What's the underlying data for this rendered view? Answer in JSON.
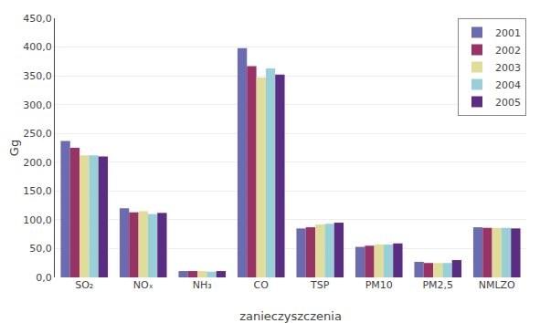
{
  "chart_data": {
    "type": "bar",
    "categories": [
      "SO₂",
      "NOₓ",
      "NH₃",
      "CO",
      "TSP",
      "PM10",
      "PM2,5",
      "NMLZO"
    ],
    "series": [
      {
        "name": "2001",
        "color": "#6b6baf",
        "values": [
          237,
          120,
          11,
          398,
          85,
          53,
          27,
          87
        ]
      },
      {
        "name": "2002",
        "color": "#993366",
        "values": [
          225,
          113,
          11,
          367,
          87,
          55,
          25,
          86
        ]
      },
      {
        "name": "2003",
        "color": "#e0dc9a",
        "values": [
          212,
          115,
          11,
          347,
          92,
          57,
          25,
          86
        ]
      },
      {
        "name": "2004",
        "color": "#99d0d8",
        "values": [
          212,
          110,
          10,
          363,
          93,
          57,
          25,
          86
        ]
      },
      {
        "name": "2005",
        "color": "#5b2d82",
        "values": [
          210,
          112,
          11,
          352,
          95,
          59,
          30,
          85
        ]
      }
    ],
    "xlabel": "zanieczyszczenia",
    "ylabel": "Gg",
    "ylim": [
      0,
      450
    ],
    "yticks": [
      {
        "value": 0,
        "label": "0,0"
      },
      {
        "value": 50,
        "label": "50,0"
      },
      {
        "value": 100,
        "label": "100,0"
      },
      {
        "value": 150,
        "label": "150,0"
      },
      {
        "value": 200,
        "label": "200,0"
      },
      {
        "value": 250,
        "label": "250,0"
      },
      {
        "value": 300,
        "label": "300,0"
      },
      {
        "value": 350,
        "label": "350,0"
      },
      {
        "value": 400,
        "label": "400,0"
      },
      {
        "value": 450,
        "label": "450,0"
      }
    ],
    "grid": true,
    "legend": "upper right"
  }
}
